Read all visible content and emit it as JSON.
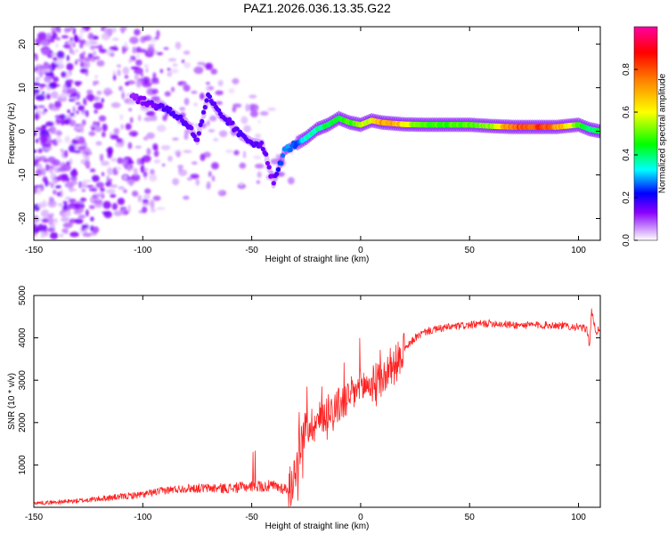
{
  "title": "PAZ1.2026.036.13.35.G22",
  "chart_data": [
    {
      "type": "heatmap",
      "title": "PAZ1.2026.036.13.35.G22",
      "xlabel": "Height of straight line (km)",
      "ylabel": "Frequency (Hz)",
      "xlim": [
        -150,
        110
      ],
      "ylim": [
        -25,
        24
      ],
      "xticks": [
        -150,
        -100,
        -50,
        0,
        50,
        100
      ],
      "yticks": [
        -20,
        -10,
        0,
        10,
        20
      ],
      "colorbar": {
        "label": "Normalized spectral amplitude",
        "range": [
          0,
          1
        ],
        "ticks": [
          0.0,
          0.2,
          0.4,
          0.6,
          0.8
        ],
        "colors": [
          "#ffffff",
          "#8a00ff",
          "#0000ff",
          "#00ffff",
          "#00ff00",
          "#ffff00",
          "#ff8000",
          "#ff0000",
          "#ff00a0"
        ]
      },
      "ridge": [
        {
          "x": -105,
          "y": 8,
          "amp": 0.12
        },
        {
          "x": -95,
          "y": 6,
          "amp": 0.15
        },
        {
          "x": -90,
          "y": 5.5,
          "amp": 0.18
        },
        {
          "x": -80,
          "y": 2,
          "amp": 0.17
        },
        {
          "x": -75,
          "y": -2,
          "amp": 0.16
        },
        {
          "x": -70,
          "y": 8,
          "amp": 0.17
        },
        {
          "x": -65,
          "y": 4,
          "amp": 0.17
        },
        {
          "x": -60,
          "y": 2,
          "amp": 0.16
        },
        {
          "x": -55,
          "y": -1,
          "amp": 0.17
        },
        {
          "x": -50,
          "y": -2.5,
          "amp": 0.17
        },
        {
          "x": -45,
          "y": -3,
          "amp": 0.16
        },
        {
          "x": -40,
          "y": -12,
          "amp": 0.14
        },
        {
          "x": -35,
          "y": -4.5,
          "amp": 0.3
        },
        {
          "x": -30,
          "y": -3,
          "amp": 0.25
        },
        {
          "x": -25,
          "y": -1.5,
          "amp": 0.35
        },
        {
          "x": -20,
          "y": 0.5,
          "amp": 0.38
        },
        {
          "x": -15,
          "y": 1.5,
          "amp": 0.42
        },
        {
          "x": -10,
          "y": 3,
          "amp": 0.45
        },
        {
          "x": -5,
          "y": 2,
          "amp": 0.48
        },
        {
          "x": 0,
          "y": 1.5,
          "amp": 0.55
        },
        {
          "x": 5,
          "y": 2.5,
          "amp": 0.62
        },
        {
          "x": 10,
          "y": 2,
          "amp": 0.72
        },
        {
          "x": 15,
          "y": 1.8,
          "amp": 0.75
        },
        {
          "x": 20,
          "y": 1.6,
          "amp": 0.6
        },
        {
          "x": 30,
          "y": 1.5,
          "amp": 0.5
        },
        {
          "x": 40,
          "y": 1.5,
          "amp": 0.5
        },
        {
          "x": 50,
          "y": 1.5,
          "amp": 0.5
        },
        {
          "x": 60,
          "y": 1.2,
          "amp": 0.55
        },
        {
          "x": 70,
          "y": 1,
          "amp": 0.8
        },
        {
          "x": 80,
          "y": 1,
          "amp": 0.85
        },
        {
          "x": 90,
          "y": 1,
          "amp": 0.75
        },
        {
          "x": 100,
          "y": 1.5,
          "amp": 0.5
        },
        {
          "x": 105,
          "y": 0.5,
          "amp": 0.4
        },
        {
          "x": 110,
          "y": 0,
          "amp": 0.45
        }
      ]
    },
    {
      "type": "line",
      "xlabel": "Height of straight line (km)",
      "ylabel": "SNR (10 * v/v)",
      "xlim": [
        -150,
        110
      ],
      "ylim": [
        0,
        5000
      ],
      "xticks": [
        -150,
        -100,
        -50,
        0,
        50,
        100
      ],
      "yticks": [
        1000,
        2000,
        3000,
        4000,
        5000
      ],
      "series": [
        {
          "name": "SNR",
          "color": "#ff2020",
          "x": [
            -150,
            -140,
            -130,
            -120,
            -110,
            -100,
            -90,
            -80,
            -70,
            -60,
            -50,
            -40,
            -35,
            -32,
            -28,
            -25,
            -20,
            -15,
            -10,
            -5,
            0,
            5,
            10,
            15,
            20,
            25,
            30,
            40,
            50,
            60,
            70,
            80,
            90,
            100,
            104,
            105,
            106,
            108,
            110
          ],
          "y": [
            100,
            120,
            150,
            200,
            250,
            300,
            400,
            450,
            450,
            450,
            500,
            500,
            450,
            400,
            1500,
            1900,
            2000,
            2300,
            2400,
            2600,
            2850,
            2900,
            3050,
            3300,
            3700,
            4000,
            4150,
            4250,
            4300,
            4350,
            4300,
            4300,
            4300,
            4250,
            4200,
            3800,
            4600,
            4150,
            4200
          ]
        }
      ]
    }
  ]
}
